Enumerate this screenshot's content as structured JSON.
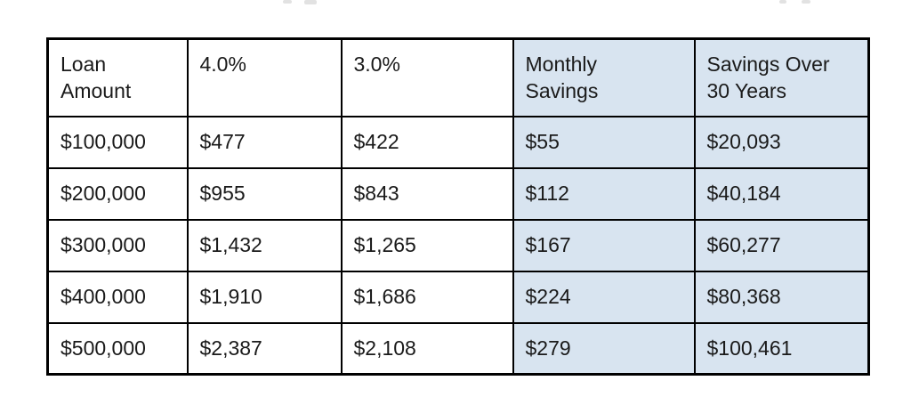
{
  "page": {
    "background": "#ffffff"
  },
  "table": {
    "accent_fill": "#d8e4f0",
    "border_color": "#000000",
    "text_color": "#1a1a1a",
    "headers": [
      {
        "line1": "Loan",
        "line2": "Amount",
        "highlighted": false
      },
      {
        "line1": "4.0%",
        "line2": "",
        "highlighted": false
      },
      {
        "line1": "3.0%",
        "line2": "",
        "highlighted": false
      },
      {
        "line1": "Monthly",
        "line2": "Savings",
        "highlighted": true
      },
      {
        "line1": "Savings Over",
        "line2": "30 Years",
        "highlighted": true
      }
    ],
    "rows": [
      {
        "cells": [
          "$100,000",
          "$477",
          "$422",
          "$55",
          "$20,093"
        ]
      },
      {
        "cells": [
          "$200,000",
          "$955",
          "$843",
          "$112",
          "$40,184"
        ]
      },
      {
        "cells": [
          "$300,000",
          "$1,432",
          "$1,265",
          "$167",
          "$60,277"
        ]
      },
      {
        "cells": [
          "$400,000",
          "$1,910",
          "$1,686",
          "$224",
          "$80,368"
        ]
      },
      {
        "cells": [
          "$500,000",
          "$2,387",
          "$2,108",
          "$279",
          "$100,461"
        ]
      }
    ]
  }
}
